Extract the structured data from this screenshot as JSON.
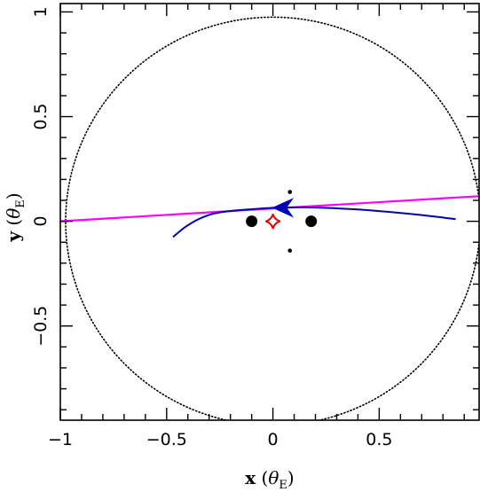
{
  "chart_data": {
    "type": "scatter",
    "title": "",
    "xlabel": "x (θE)",
    "ylabel": "y (θE)",
    "xlabel_parts": {
      "var": "x",
      "open": " (",
      "theta": "θ",
      "sub": "E",
      "close": ")"
    },
    "ylabel_parts": {
      "var": "y",
      "open": " (",
      "theta": "θ",
      "sub": "E",
      "close": ")"
    },
    "xlim": [
      -1.0,
      0.97
    ],
    "ylim": [
      -0.95,
      1.04
    ],
    "xticks": [
      -1,
      -0.5,
      0,
      0.5
    ],
    "xtick_labels": [
      "−1",
      "−0.5",
      "0",
      "0.5"
    ],
    "yticks": [
      -0.5,
      0,
      0.5,
      1
    ],
    "ytick_labels": [
      "−0.5",
      "0",
      "0.5",
      "1"
    ],
    "grid": false,
    "einstein_ring": {
      "center": [
        0.0,
        0.0
      ],
      "radius": 0.975,
      "style": "dotted",
      "color": "#000000"
    },
    "lens_masses": [
      {
        "x": -0.1,
        "y": 0.0,
        "size": "large"
      },
      {
        "x": 0.18,
        "y": 0.0,
        "size": "large"
      }
    ],
    "image_points": [
      {
        "x": 0.08,
        "y": 0.14
      },
      {
        "x": 0.08,
        "y": -0.14
      }
    ],
    "caustic": {
      "color": "#e00000",
      "center": [
        0.0,
        0.0
      ],
      "half_width": 0.035,
      "half_height": 0.036
    },
    "source_trajectory": {
      "color": "#ff00ff",
      "points": [
        [
          -1.0,
          0.0
        ],
        [
          0.97,
          0.12
        ]
      ]
    },
    "lens_trajectory": {
      "color": "#0000b4",
      "points": [
        [
          -0.47,
          -0.075
        ],
        [
          -0.4,
          -0.015
        ],
        [
          -0.3,
          0.035
        ],
        [
          -0.2,
          0.05
        ],
        [
          -0.1,
          0.058
        ],
        [
          0.0,
          0.065
        ],
        [
          0.1,
          0.067
        ],
        [
          0.2,
          0.066
        ],
        [
          0.3,
          0.062
        ],
        [
          0.4,
          0.057
        ],
        [
          0.5,
          0.049
        ],
        [
          0.6,
          0.04
        ],
        [
          0.7,
          0.03
        ],
        [
          0.8,
          0.018
        ],
        [
          0.86,
          0.01
        ]
      ],
      "arrow_at": [
        0.0,
        0.065
      ],
      "arrow_direction": "left"
    }
  }
}
